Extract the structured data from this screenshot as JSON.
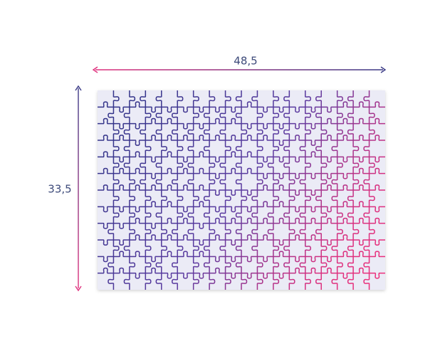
{
  "dimensions": {
    "width": "48,5",
    "height": "33,5"
  }
}
